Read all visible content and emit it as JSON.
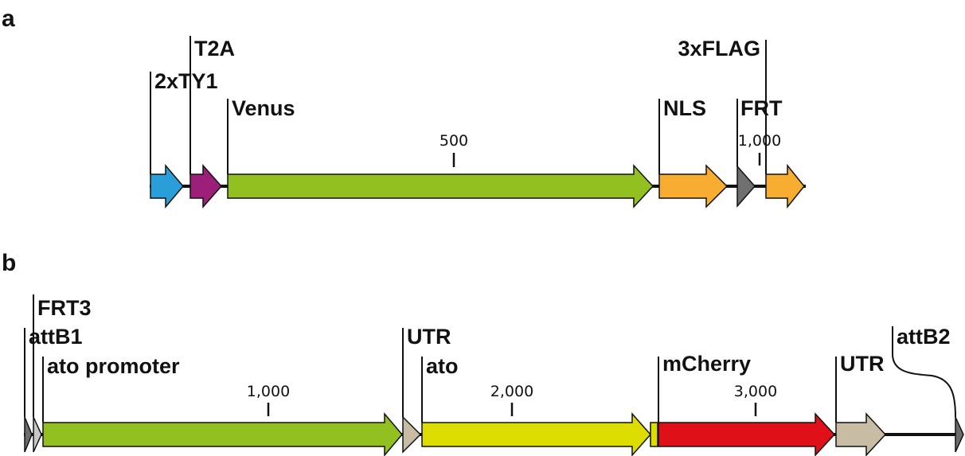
{
  "panels": [
    {
      "id": "a",
      "label": "a",
      "features": [
        {
          "name": "2xTY1",
          "color": "#2a9ed8"
        },
        {
          "name": "T2A",
          "color": "#9b1f78"
        },
        {
          "name": "Venus",
          "color": "#92c020"
        },
        {
          "name": "NLS",
          "color": "#f7ad32"
        },
        {
          "name": "FRT",
          "color": "#707070"
        },
        {
          "name": "3xFLAG",
          "color": "#f7ad32"
        }
      ],
      "scale_ticks": [
        "500",
        "1,000"
      ]
    },
    {
      "id": "b",
      "label": "b",
      "features": [
        {
          "name": "attB1",
          "color": "#6c6c6c"
        },
        {
          "name": "FRT3",
          "color": "#c8c8c8"
        },
        {
          "name": "ato promoter",
          "color": "#92c020"
        },
        {
          "name": "UTR",
          "color": "#c9bca4"
        },
        {
          "name": "ato",
          "color": "#dcdc00"
        },
        {
          "name": "mCherry",
          "color": "#e01018"
        },
        {
          "name": "UTR",
          "color": "#c9bca4"
        },
        {
          "name": "attB2",
          "color": "#6c6c6c"
        }
      ],
      "linker_color": "#dcdc00",
      "scale_ticks": [
        "1,000",
        "2,000",
        "3,000"
      ]
    }
  ]
}
